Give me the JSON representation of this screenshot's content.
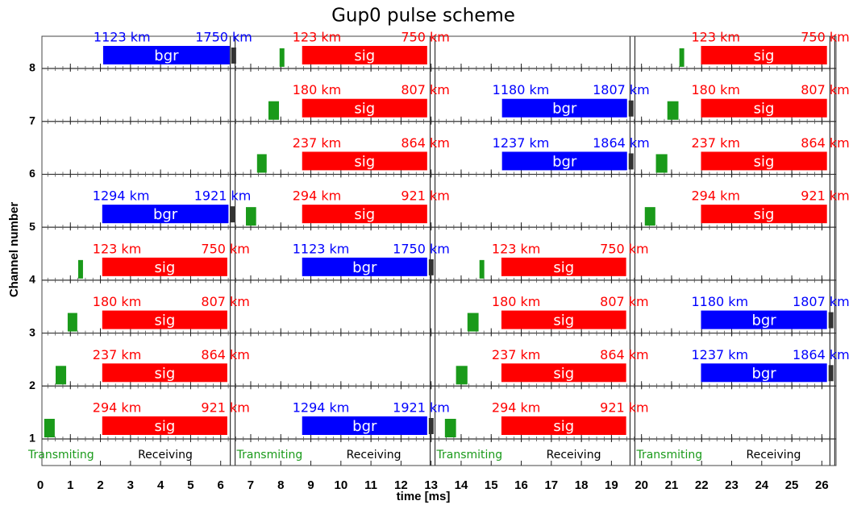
{
  "chart_data": {
    "type": "timeline",
    "title": "Gup0 pulse scheme",
    "xlabel": "time [ms]",
    "ylabel": "Channel number",
    "xlim": [
      0,
      26.5
    ],
    "xticks": [
      0,
      1,
      2,
      3,
      4,
      5,
      6,
      7,
      8,
      9,
      10,
      11,
      12,
      13,
      14,
      15,
      16,
      17,
      18,
      19,
      20,
      21,
      22,
      23,
      24,
      25,
      26
    ],
    "ylim": [
      1,
      8
    ],
    "yticks": [
      1,
      2,
      3,
      4,
      5,
      6,
      7,
      8
    ],
    "grid": true,
    "pulse_color": "#1a9a1a",
    "pulses": [
      {
        "channel": 1,
        "start": 0.13,
        "end": 0.48
      },
      {
        "channel": 2,
        "start": 0.51,
        "end": 0.86
      },
      {
        "channel": 3,
        "start": 0.91,
        "end": 1.23
      },
      {
        "channel": 4,
        "start": 1.26,
        "end": 1.42
      },
      {
        "channel": 5,
        "start": 6.84,
        "end": 7.18
      },
      {
        "channel": 6,
        "start": 7.21,
        "end": 7.53
      },
      {
        "channel": 7,
        "start": 7.59,
        "end": 7.94
      },
      {
        "channel": 8,
        "start": 7.96,
        "end": 8.12
      },
      {
        "channel": 1,
        "start": 13.46,
        "end": 13.83
      },
      {
        "channel": 2,
        "start": 13.83,
        "end": 14.21
      },
      {
        "channel": 3,
        "start": 14.21,
        "end": 14.58
      },
      {
        "channel": 4,
        "start": 14.61,
        "end": 14.77
      },
      {
        "channel": 5,
        "start": 20.11,
        "end": 20.46
      },
      {
        "channel": 6,
        "start": 20.48,
        "end": 20.86
      },
      {
        "channel": 7,
        "start": 20.86,
        "end": 21.23
      },
      {
        "channel": 8,
        "start": 21.26,
        "end": 21.42
      }
    ],
    "windows": [
      {
        "channel": 8,
        "kind": "bgr",
        "color": "#0000ff",
        "start": 2.09,
        "end": 6.3,
        "range_start": "1123 km",
        "range_end": "1750 km"
      },
      {
        "channel": 5,
        "kind": "bgr",
        "color": "#0000ff",
        "start": 2.06,
        "end": 6.26,
        "range_start": "1294 km",
        "range_end": "1921 km"
      },
      {
        "channel": 4,
        "kind": "sig",
        "color": "#ff0000",
        "start": 2.06,
        "end": 6.22,
        "range_start": "123 km",
        "range_end": "750 km"
      },
      {
        "channel": 3,
        "kind": "sig",
        "color": "#ff0000",
        "start": 2.06,
        "end": 6.22,
        "range_start": "180 km",
        "range_end": "807 km"
      },
      {
        "channel": 2,
        "kind": "sig",
        "color": "#ff0000",
        "start": 2.06,
        "end": 6.22,
        "range_start": "237 km",
        "range_end": "864 km"
      },
      {
        "channel": 1,
        "kind": "sig",
        "color": "#ff0000",
        "start": 2.06,
        "end": 6.22,
        "range_start": "294 km",
        "range_end": "921 km"
      },
      {
        "channel": 8,
        "kind": "sig",
        "color": "#ff0000",
        "start": 8.71,
        "end": 12.87,
        "range_start": "123 km",
        "range_end": "750 km"
      },
      {
        "channel": 7,
        "kind": "sig",
        "color": "#ff0000",
        "start": 8.71,
        "end": 12.87,
        "range_start": "180 km",
        "range_end": "807 km"
      },
      {
        "channel": 6,
        "kind": "sig",
        "color": "#ff0000",
        "start": 8.71,
        "end": 12.87,
        "range_start": "237 km",
        "range_end": "864 km"
      },
      {
        "channel": 5,
        "kind": "sig",
        "color": "#ff0000",
        "start": 8.71,
        "end": 12.87,
        "range_start": "294 km",
        "range_end": "921 km"
      },
      {
        "channel": 4,
        "kind": "bgr",
        "color": "#0000ff",
        "start": 8.71,
        "end": 12.87,
        "range_start": "1123 km",
        "range_end": "1750 km"
      },
      {
        "channel": 1,
        "kind": "bgr",
        "color": "#0000ff",
        "start": 8.71,
        "end": 12.87,
        "range_start": "1294 km",
        "range_end": "1921 km"
      },
      {
        "channel": 7,
        "kind": "bgr",
        "color": "#0000ff",
        "start": 15.36,
        "end": 19.52,
        "range_start": "1180 km",
        "range_end": "1807 km"
      },
      {
        "channel": 6,
        "kind": "bgr",
        "color": "#0000ff",
        "start": 15.36,
        "end": 19.52,
        "range_start": "1237 km",
        "range_end": "1864 km"
      },
      {
        "channel": 4,
        "kind": "sig",
        "color": "#ff0000",
        "start": 15.34,
        "end": 19.49,
        "range_start": "123 km",
        "range_end": "750 km"
      },
      {
        "channel": 3,
        "kind": "sig",
        "color": "#ff0000",
        "start": 15.34,
        "end": 19.49,
        "range_start": "180 km",
        "range_end": "807 km"
      },
      {
        "channel": 2,
        "kind": "sig",
        "color": "#ff0000",
        "start": 15.34,
        "end": 19.49,
        "range_start": "237 km",
        "range_end": "864 km"
      },
      {
        "channel": 1,
        "kind": "sig",
        "color": "#ff0000",
        "start": 15.34,
        "end": 19.49,
        "range_start": "294 km",
        "range_end": "921 km"
      },
      {
        "channel": 8,
        "kind": "sig",
        "color": "#ff0000",
        "start": 21.98,
        "end": 26.17,
        "range_start": "123 km",
        "range_end": "750 km"
      },
      {
        "channel": 7,
        "kind": "sig",
        "color": "#ff0000",
        "start": 21.98,
        "end": 26.17,
        "range_start": "180 km",
        "range_end": "807 km"
      },
      {
        "channel": 6,
        "kind": "sig",
        "color": "#ff0000",
        "start": 21.98,
        "end": 26.17,
        "range_start": "237 km",
        "range_end": "864 km"
      },
      {
        "channel": 5,
        "kind": "sig",
        "color": "#ff0000",
        "start": 21.98,
        "end": 26.17,
        "range_start": "294 km",
        "range_end": "921 km"
      },
      {
        "channel": 3,
        "kind": "bgr",
        "color": "#0000ff",
        "start": 21.98,
        "end": 26.17,
        "range_start": "1180 km",
        "range_end": "1807 km"
      },
      {
        "channel": 2,
        "kind": "bgr",
        "color": "#0000ff",
        "start": 21.98,
        "end": 26.17,
        "range_start": "1237 km",
        "range_end": "1864 km"
      }
    ],
    "boundaries": [
      6.4,
      13.05,
      19.7,
      26.35
    ],
    "transmit_color": "#1a9a1a",
    "phases": [
      {
        "transmit": "Transmiting",
        "receive": "Receiving"
      },
      {
        "transmit": "Transmiting",
        "receive": "Receiving"
      },
      {
        "transmit": "Transmiting",
        "receive": "Receiving"
      },
      {
        "transmit": "Transmiting",
        "receive": "Receiving"
      }
    ]
  }
}
